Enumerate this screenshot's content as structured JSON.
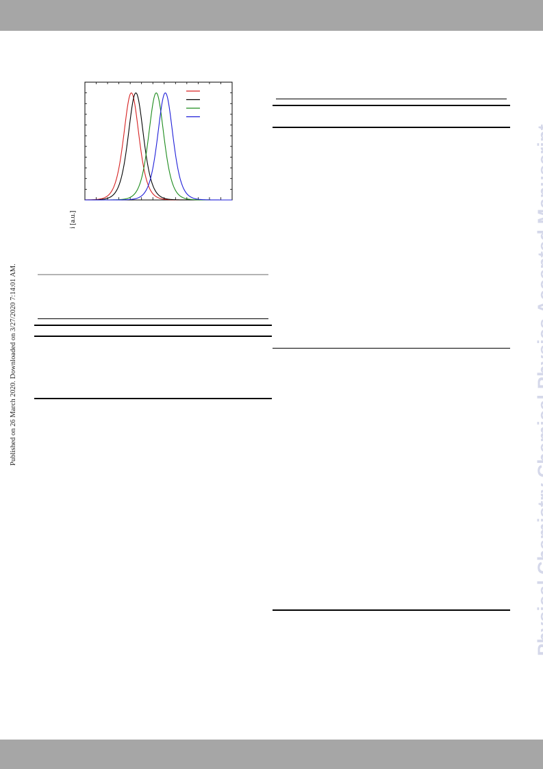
{
  "page": {
    "side_note": "Published on 26 March 2020. Downloaded on 3/27/2020 7:14:01 AM.",
    "watermark": "Physical Chemistry Chemical Physics Accepted Manuscript"
  },
  "figure": {
    "ylabel": "i [a.u.]"
  },
  "colors": {
    "band": "#a6a6a6",
    "watermark": "#d5d8ea"
  },
  "chart_data": {
    "type": "line",
    "xlabel": "",
    "ylabel": "i [a.u.]",
    "xlim": [
      0,
      13
    ],
    "ylim": [
      0,
      1.1
    ],
    "legend": "top-right",
    "grid": false,
    "series": [
      {
        "color": "#d62020",
        "center": 4.1,
        "sigma": 0.95,
        "peak": 1.0
      },
      {
        "color": "#000000",
        "center": 4.5,
        "sigma": 0.95,
        "peak": 1.0
      },
      {
        "color": "#1a8a1a",
        "center": 6.3,
        "sigma": 0.95,
        "peak": 1.0
      },
      {
        "color": "#1c1cd8",
        "center": 7.1,
        "sigma": 0.95,
        "peak": 1.0
      }
    ]
  }
}
